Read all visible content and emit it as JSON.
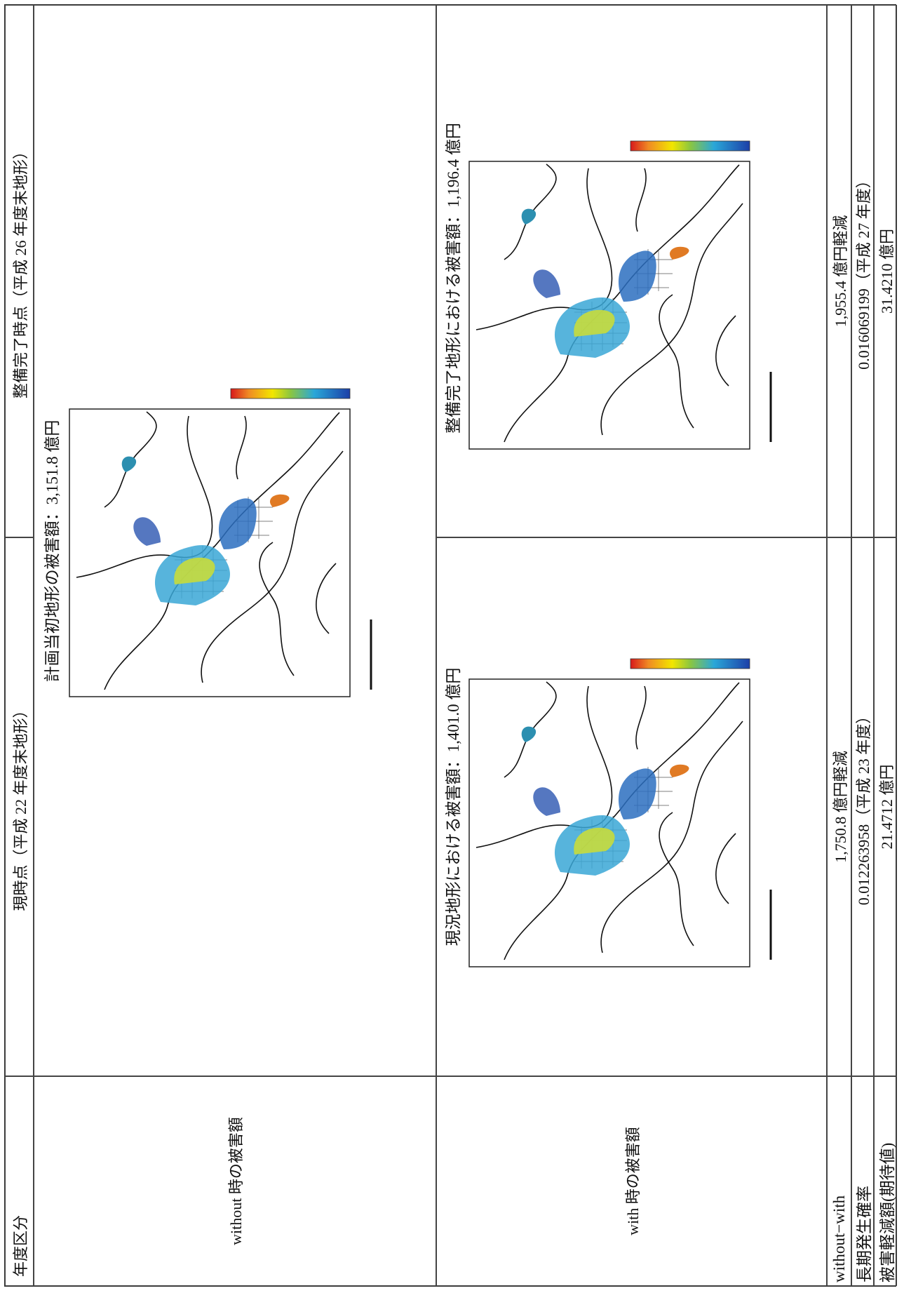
{
  "header": {
    "label": "年度区分",
    "current": "現時点（平成 22 年度末地形）",
    "completed": "整備完了時点（平成 26 年度末地形）"
  },
  "without": {
    "label": "without 時の被害額",
    "caption": "計画当初地形の被害額：3,151.8 億円"
  },
  "with": {
    "label": "with 時の被害額",
    "current": "現況地形における被害額：1,401.0 億円",
    "completed": "整備完了地形における被害額：1,196.4 億円"
  },
  "summary": [
    [
      "without−with",
      "1,750.8 億円軽減",
      "1,955.4 億円軽減"
    ],
    [
      "長期発生確率",
      "0.012263958（平成 23 年度）",
      "0.016069199（平成 27 年度）"
    ],
    [
      "被害軽減額(期待値)",
      "21.4712 億円",
      "31.4210 億円"
    ]
  ]
}
